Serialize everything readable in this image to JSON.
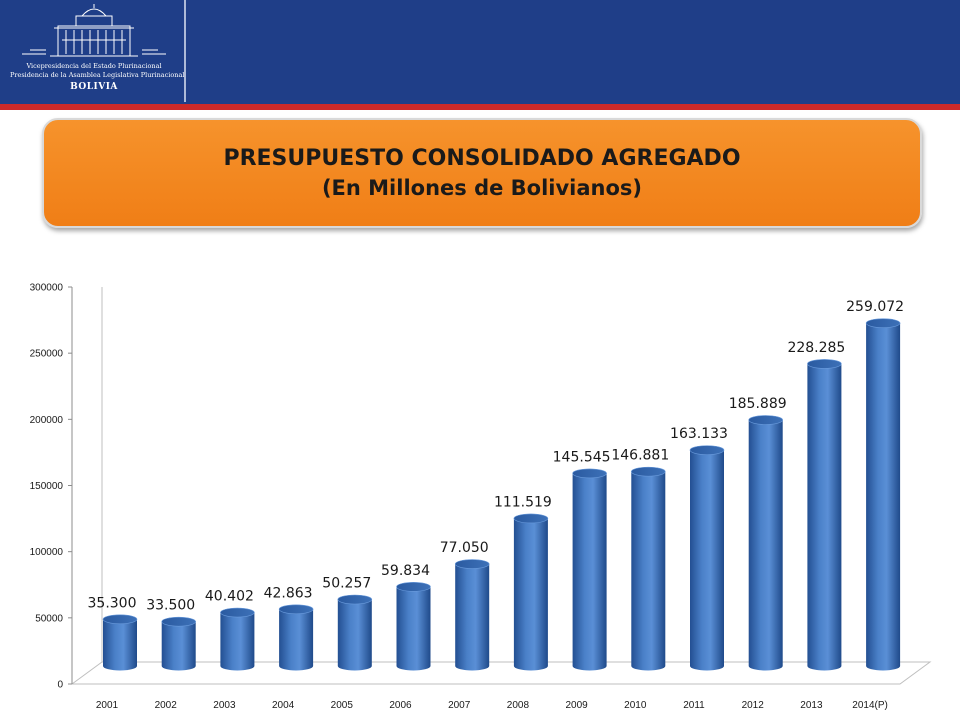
{
  "header": {
    "logo": {
      "line1": "Vicepresidencia del Estado Plurinacional",
      "line2": "Presidencia de la Asamblea Legislativa Plurinacional",
      "line3": "BOLIVIA"
    }
  },
  "title": {
    "line1": "PRESUPUESTO CONSOLIDADO AGREGADO",
    "line2": "(En Millones de Bolivianos)"
  },
  "colors": {
    "header": "#1f3e88",
    "header_accent": "#cc2a2a",
    "title_box": "#f58a22",
    "bar": "#3d71b8"
  },
  "chart_data": {
    "type": "bar",
    "categories": [
      "2001",
      "2002",
      "2003",
      "2004",
      "2005",
      "2006",
      "2007",
      "2008",
      "2009",
      "2010",
      "2011",
      "2012",
      "2013",
      "2014(P)"
    ],
    "values": [
      35300,
      33500,
      40402,
      42863,
      50257,
      59834,
      77050,
      111519,
      145545,
      146881,
      163133,
      185889,
      228285,
      259072
    ],
    "data_labels": [
      "35.300",
      "33.500",
      "40.402",
      "42.863",
      "50.257",
      "59.834",
      "77.050",
      "111.519",
      "145.545",
      "146.881",
      "163.133",
      "185.889",
      "228.285",
      "259.072"
    ],
    "y_ticks": [
      "0",
      "50000",
      "100000",
      "150000",
      "200000",
      "250000",
      "300000"
    ],
    "ylim": [
      0,
      300000
    ],
    "grid": false,
    "legend": "none",
    "style": "3d-cylinder"
  }
}
